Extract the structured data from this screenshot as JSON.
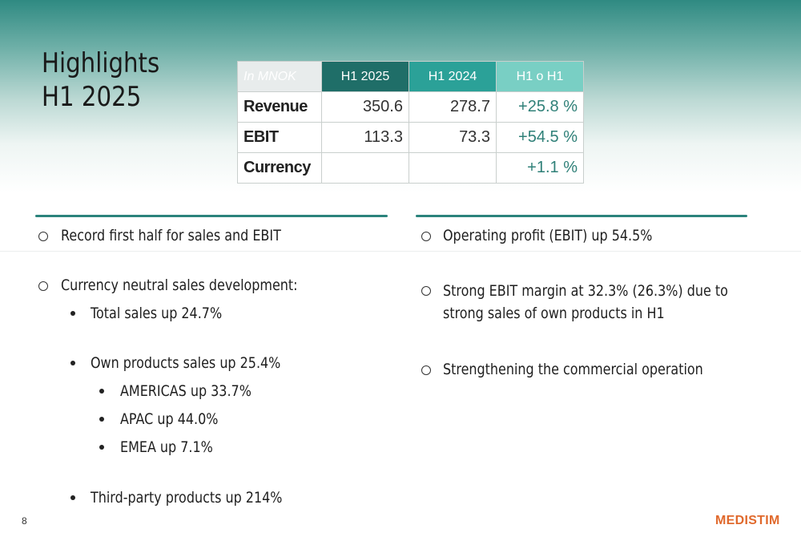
{
  "title": {
    "line1": "Highlights",
    "line2": "H1 2025"
  },
  "table": {
    "headers": [
      "In MNOK",
      "H1 2025",
      "H1 2024",
      "H1 o H1"
    ],
    "rows": [
      {
        "label": "Revenue",
        "h1_2025": "350.6",
        "h1_2024": "278.7",
        "change": "+25.8 %"
      },
      {
        "label": "EBIT",
        "h1_2025": "113.3",
        "h1_2024": "73.3",
        "change": "+54.5 %"
      },
      {
        "label": "Currency",
        "h1_2025": "",
        "h1_2024": "",
        "change": "+1.1 %"
      }
    ]
  },
  "left_column": {
    "items": [
      "Record first half for sales and EBIT",
      "Currency neutral sales development:",
      "Total sales up 24.7%",
      "Own products sales up 25.4%",
      "AMERICAS up 33.7%",
      "APAC up 44.0%",
      "EMEA up 7.1%",
      "Third-party products up 214%"
    ]
  },
  "right_column": {
    "items": [
      "Operating profit (EBIT) up 54.5%",
      "Strong EBIT margin at 32.3% (26.3%) due to",
      "strong sales of own products in H1",
      "Strengthening the commercial operation"
    ]
  },
  "footer": {
    "page_number": "8",
    "logo_text": "MEDISTIM"
  },
  "colors": {
    "accent_dark": "#1f6e68",
    "accent": "#2ba198",
    "accent_light": "#79cfc4",
    "logo": "#e0692c"
  }
}
